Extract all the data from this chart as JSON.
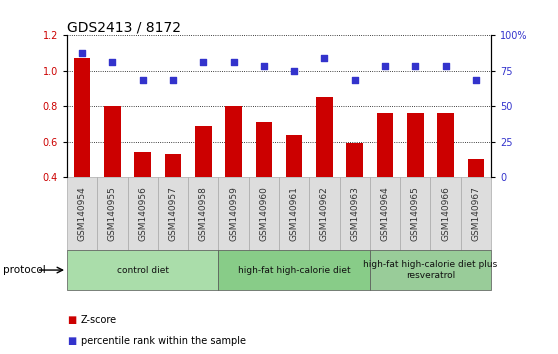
{
  "title": "GDS2413 / 8172",
  "samples": [
    "GSM140954",
    "GSM140955",
    "GSM140956",
    "GSM140957",
    "GSM140958",
    "GSM140959",
    "GSM140960",
    "GSM140961",
    "GSM140962",
    "GSM140963",
    "GSM140964",
    "GSM140965",
    "GSM140966",
    "GSM140967"
  ],
  "zscore": [
    1.07,
    0.8,
    0.54,
    0.53,
    0.69,
    0.8,
    0.71,
    0.64,
    0.85,
    0.59,
    0.76,
    0.76,
    0.76,
    0.5
  ],
  "percentile": [
    87.5,
    81.25,
    68.75,
    68.75,
    81.25,
    81.25,
    78.125,
    75.0,
    84.375,
    68.75,
    78.125,
    78.125,
    78.125,
    68.75
  ],
  "ylim_left": [
    0.4,
    1.2
  ],
  "ylim_right": [
    0,
    100
  ],
  "yticks_left": [
    0.4,
    0.6,
    0.8,
    1.0,
    1.2
  ],
  "ytick_labels_left": [
    "0.4",
    "0.6",
    "0.8",
    "1.0",
    "1.2"
  ],
  "yticks_right": [
    0,
    25,
    50,
    75,
    100
  ],
  "ytick_labels_right": [
    "0",
    "25",
    "50",
    "75",
    "100%"
  ],
  "bar_color": "#cc0000",
  "dot_color": "#3333cc",
  "grid_color": "#000000",
  "protocol_groups": [
    {
      "label": "control diet",
      "start": 0,
      "end": 4,
      "color": "#aaddaa"
    },
    {
      "label": "high-fat high-calorie diet",
      "start": 5,
      "end": 9,
      "color": "#88cc88"
    },
    {
      "label": "high-fat high-calorie diet plus\nresveratrol",
      "start": 10,
      "end": 13,
      "color": "#99cc99"
    }
  ],
  "legend_zscore_label": "Z-score",
  "legend_pct_label": "percentile rank within the sample",
  "protocol_label": "protocol",
  "title_fontsize": 10,
  "tick_fontsize": 7,
  "label_fontsize": 7,
  "protocol_fontsize": 8,
  "sample_label_fontsize": 6.5,
  "sample_box_color": "#dddddd",
  "sample_box_edge": "#aaaaaa"
}
